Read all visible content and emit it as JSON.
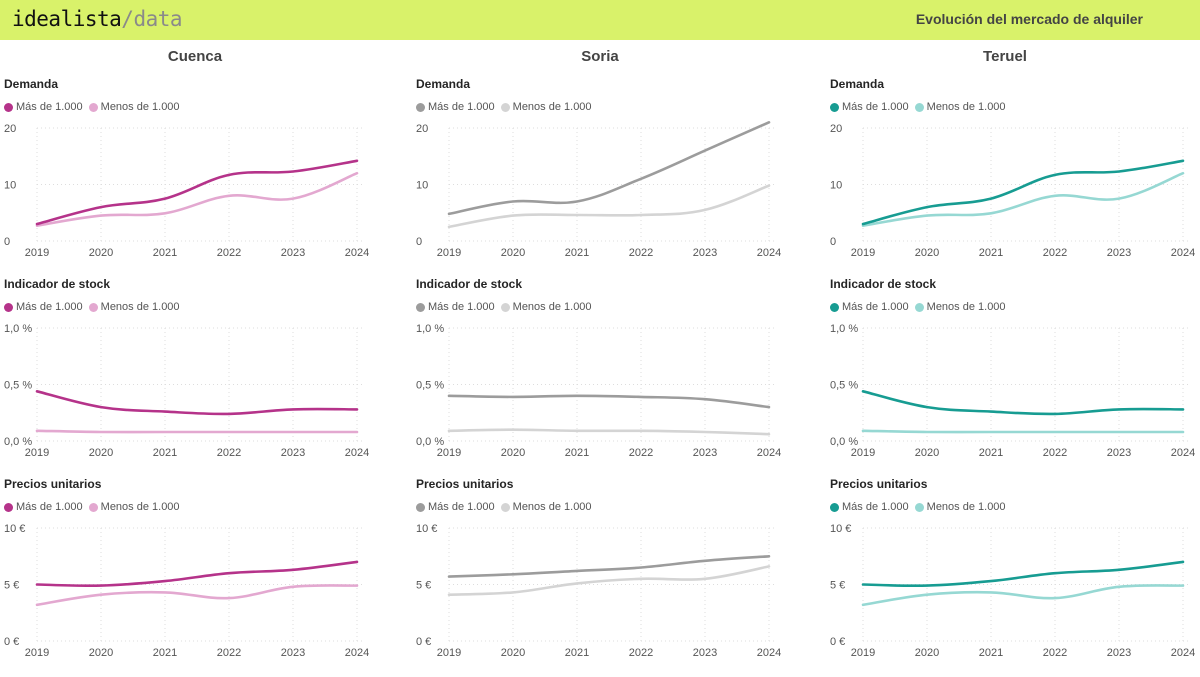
{
  "header": {
    "brand_main": "idealista",
    "brand_sep": "/",
    "brand_sub": "data",
    "report_title": "Evolución del mercado de alquiler"
  },
  "colors": {
    "topbar": "#d9f26a",
    "gridline": "#dddddd"
  },
  "columns": [
    {
      "title": "Cuenca",
      "colors": {
        "main": "#b5338a",
        "light": "#e3a8d0"
      }
    },
    {
      "title": "Soria",
      "colors": {
        "main": "#9c9c9c",
        "light": "#d4d4d4"
      }
    },
    {
      "title": "Teruel",
      "colors": {
        "main": "#179c92",
        "light": "#96d8d3"
      }
    }
  ],
  "chart_data": [
    {
      "id": "cuenca-demanda",
      "type": "line",
      "title": "Demanda",
      "categories": [
        "2019",
        "2020",
        "2021",
        "2022",
        "2023",
        "2024"
      ],
      "yticks": [
        0,
        10,
        20
      ],
      "ytick_labels": [
        "0",
        "10",
        "20"
      ],
      "ylim": [
        0,
        20
      ],
      "series": [
        {
          "name": "Más de 1.000",
          "values": [
            3.0,
            6.0,
            7.5,
            11.7,
            12.3,
            14.2
          ]
        },
        {
          "name": "Menos de 1.000",
          "values": [
            2.7,
            4.5,
            4.9,
            8.0,
            7.5,
            12.0
          ]
        }
      ]
    },
    {
      "id": "soria-demanda",
      "type": "line",
      "title": "Demanda",
      "categories": [
        "2019",
        "2020",
        "2021",
        "2022",
        "2023",
        "2024"
      ],
      "yticks": [
        0,
        10,
        20
      ],
      "ytick_labels": [
        "0",
        "10",
        "20"
      ],
      "ylim": [
        0,
        20
      ],
      "series": [
        {
          "name": "Más de 1.000",
          "values": [
            4.8,
            7.0,
            7.0,
            11.0,
            16.0,
            21.0
          ]
        },
        {
          "name": "Menos de 1.000",
          "values": [
            2.5,
            4.5,
            4.6,
            4.6,
            5.5,
            9.8
          ]
        }
      ]
    },
    {
      "id": "teruel-demanda",
      "type": "line",
      "title": "Demanda",
      "categories": [
        "2019",
        "2020",
        "2021",
        "2022",
        "2023",
        "2024"
      ],
      "yticks": [
        0,
        10,
        20
      ],
      "ytick_labels": [
        "0",
        "10",
        "20"
      ],
      "ylim": [
        0,
        20
      ],
      "series": [
        {
          "name": "Más de 1.000",
          "values": [
            3.0,
            6.0,
            7.5,
            11.7,
            12.3,
            14.2
          ]
        },
        {
          "name": "Menos de 1.000",
          "values": [
            2.7,
            4.5,
            4.9,
            8.0,
            7.5,
            12.0
          ]
        }
      ]
    },
    {
      "id": "cuenca-stock",
      "type": "line",
      "title": "Indicador de stock",
      "categories": [
        "2019",
        "2020",
        "2021",
        "2022",
        "2023",
        "2024"
      ],
      "yticks": [
        0,
        0.5,
        1.0
      ],
      "ytick_labels": [
        "0,0 %",
        "0,5 %",
        "1,0 %"
      ],
      "ylim": [
        0,
        1.0
      ],
      "series": [
        {
          "name": "Más de 1.000",
          "values": [
            0.44,
            0.3,
            0.26,
            0.24,
            0.28,
            0.28
          ]
        },
        {
          "name": "Menos de 1.000",
          "values": [
            0.09,
            0.08,
            0.08,
            0.08,
            0.08,
            0.08
          ]
        }
      ]
    },
    {
      "id": "soria-stock",
      "type": "line",
      "title": "Indicador de stock",
      "categories": [
        "2019",
        "2020",
        "2021",
        "2022",
        "2023",
        "2024"
      ],
      "yticks": [
        0,
        0.5,
        1.0
      ],
      "ytick_labels": [
        "0,0 %",
        "0,5 %",
        "1,0 %"
      ],
      "ylim": [
        0,
        1.0
      ],
      "series": [
        {
          "name": "Más de 1.000",
          "values": [
            0.4,
            0.39,
            0.4,
            0.39,
            0.37,
            0.3
          ]
        },
        {
          "name": "Menos de 1.000",
          "values": [
            0.09,
            0.1,
            0.09,
            0.09,
            0.08,
            0.06
          ]
        }
      ]
    },
    {
      "id": "teruel-stock",
      "type": "line",
      "title": "Indicador de stock",
      "categories": [
        "2019",
        "2020",
        "2021",
        "2022",
        "2023",
        "2024"
      ],
      "yticks": [
        0,
        0.5,
        1.0
      ],
      "ytick_labels": [
        "0,0 %",
        "0,5 %",
        "1,0 %"
      ],
      "ylim": [
        0,
        1.0
      ],
      "series": [
        {
          "name": "Más de 1.000",
          "values": [
            0.44,
            0.3,
            0.26,
            0.24,
            0.28,
            0.28
          ]
        },
        {
          "name": "Menos de 1.000",
          "values": [
            0.09,
            0.08,
            0.08,
            0.08,
            0.08,
            0.08
          ]
        }
      ]
    },
    {
      "id": "cuenca-precios",
      "type": "line",
      "title": "Precios unitarios",
      "categories": [
        "2019",
        "2020",
        "2021",
        "2022",
        "2023",
        "2024"
      ],
      "yticks": [
        0,
        5,
        10
      ],
      "ytick_labels": [
        "0 €",
        "5 €",
        "10 €"
      ],
      "ylim": [
        0,
        10
      ],
      "series": [
        {
          "name": "Más de 1.000",
          "values": [
            5.0,
            4.9,
            5.3,
            6.0,
            6.3,
            7.0
          ]
        },
        {
          "name": "Menos de 1.000",
          "values": [
            3.2,
            4.1,
            4.3,
            3.8,
            4.8,
            4.9
          ]
        }
      ]
    },
    {
      "id": "soria-precios",
      "type": "line",
      "title": "Precios unitarios",
      "categories": [
        "2019",
        "2020",
        "2021",
        "2022",
        "2023",
        "2024"
      ],
      "yticks": [
        0,
        5,
        10
      ],
      "ytick_labels": [
        "0 €",
        "5 €",
        "10 €"
      ],
      "ylim": [
        0,
        10
      ],
      "series": [
        {
          "name": "Más de 1.000",
          "values": [
            5.7,
            5.9,
            6.2,
            6.5,
            7.1,
            7.5
          ]
        },
        {
          "name": "Menos de 1.000",
          "values": [
            4.1,
            4.3,
            5.1,
            5.5,
            5.5,
            6.6
          ]
        }
      ]
    },
    {
      "id": "teruel-precios",
      "type": "line",
      "title": "Precios unitarios",
      "categories": [
        "2019",
        "2020",
        "2021",
        "2022",
        "2023",
        "2024"
      ],
      "yticks": [
        0,
        5,
        10
      ],
      "ytick_labels": [
        "0 €",
        "5 €",
        "10 €"
      ],
      "ylim": [
        0,
        10
      ],
      "series": [
        {
          "name": "Más de 1.000",
          "values": [
            5.0,
            4.9,
            5.3,
            6.0,
            6.3,
            7.0
          ]
        },
        {
          "name": "Menos de 1.000",
          "values": [
            3.2,
            4.1,
            4.3,
            3.8,
            4.8,
            4.9
          ]
        }
      ]
    }
  ]
}
